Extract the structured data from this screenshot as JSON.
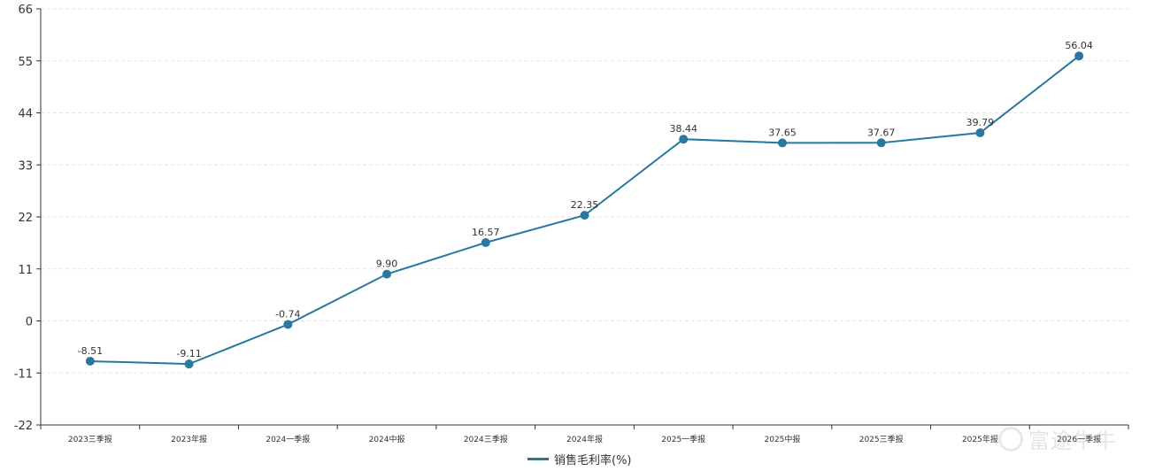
{
  "colors": {
    "line": "#2878a0",
    "marker": "#2878a0",
    "grid": "#e3e3e3",
    "axis": "#333333"
  },
  "chart_data": {
    "type": "line",
    "title": "",
    "xlabel": "",
    "ylabel": "",
    "ylim": [
      -22,
      66
    ],
    "yticks": [
      "66",
      "55",
      "44",
      "33",
      "22",
      "11",
      "0",
      "-11",
      "-22"
    ],
    "grid": true,
    "legend_position": "bottom-center",
    "categories": [
      "2023三季报",
      "2023年报",
      "2024一季报",
      "2024中报",
      "2024三季报",
      "2024年报",
      "2025一季报",
      "2025中报",
      "2025三季报",
      "2025年报",
      "2026一季报"
    ],
    "series": [
      {
        "name": "销售毛利率(%)",
        "values": [
          -8.51,
          -9.11,
          -0.74,
          9.9,
          16.57,
          22.35,
          38.44,
          37.65,
          37.67,
          39.79,
          56.04
        ],
        "labels": [
          "-8.51",
          "-9.11",
          "-0.74",
          "9.90",
          "16.57",
          "22.35",
          "38.44",
          "37.65",
          "37.67",
          "39.79",
          "56.04"
        ]
      }
    ]
  },
  "watermark": {
    "text": "富途牛牛"
  }
}
